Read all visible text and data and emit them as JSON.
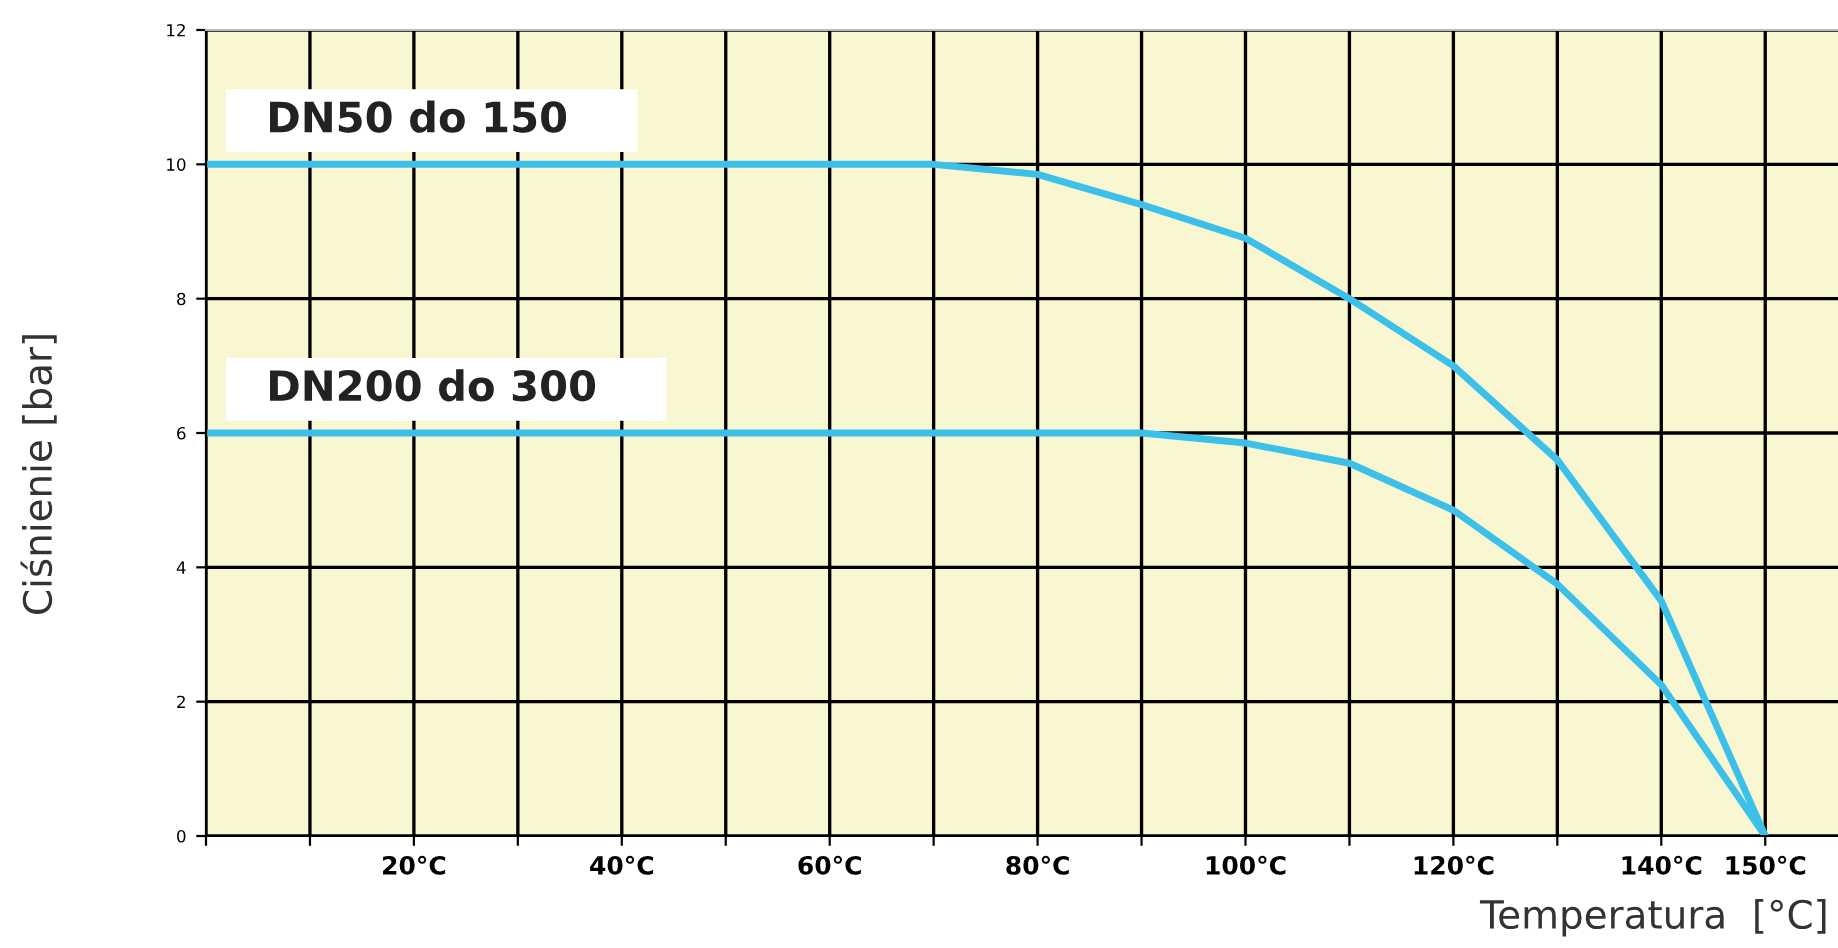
{
  "chart_data": {
    "type": "line",
    "xlabel": "Temperatura  [°C]",
    "ylabel": "Ciśnienie [bar]",
    "x": [
      0,
      60,
      67,
      70,
      80,
      90,
      100,
      110,
      120,
      130,
      140,
      150
    ],
    "series": [
      {
        "name": "DN50 do 150",
        "color": "#3cc0ea",
        "values": [
          10,
          10,
          10,
          10,
          9.85,
          9.4,
          8.9,
          8.0,
          7.0,
          5.6,
          3.5,
          0
        ]
      },
      {
        "name": "DN200 do 300",
        "color": "#3cc0ea",
        "x": [
          0,
          80,
          88,
          90,
          100,
          110,
          120,
          130,
          140,
          150
        ],
        "values": [
          6,
          6,
          6,
          6,
          5.85,
          5.55,
          4.85,
          3.75,
          2.25,
          0
        ]
      }
    ],
    "xlim": [
      0,
      157
    ],
    "ylim": [
      0,
      12
    ],
    "xticks": [
      {
        "value": 0,
        "label": null
      },
      {
        "value": 10,
        "label": null
      },
      {
        "value": 20,
        "label": "20°C"
      },
      {
        "value": 30,
        "label": null
      },
      {
        "value": 40,
        "label": "40°C"
      },
      {
        "value": 50,
        "label": null
      },
      {
        "value": 60,
        "label": "60°C"
      },
      {
        "value": 70,
        "label": null
      },
      {
        "value": 80,
        "label": "80°C"
      },
      {
        "value": 90,
        "label": null
      },
      {
        "value": 100,
        "label": "100°C"
      },
      {
        "value": 110,
        "label": null
      },
      {
        "value": 120,
        "label": "120°C"
      },
      {
        "value": 130,
        "label": null
      },
      {
        "value": 140,
        "label": "140°C"
      },
      {
        "value": 150,
        "label": "150°C"
      }
    ],
    "yticks": [
      0,
      2,
      4,
      6,
      8,
      10,
      12
    ],
    "grid": true,
    "legend": false,
    "marker": "none",
    "line_style": "solid"
  }
}
